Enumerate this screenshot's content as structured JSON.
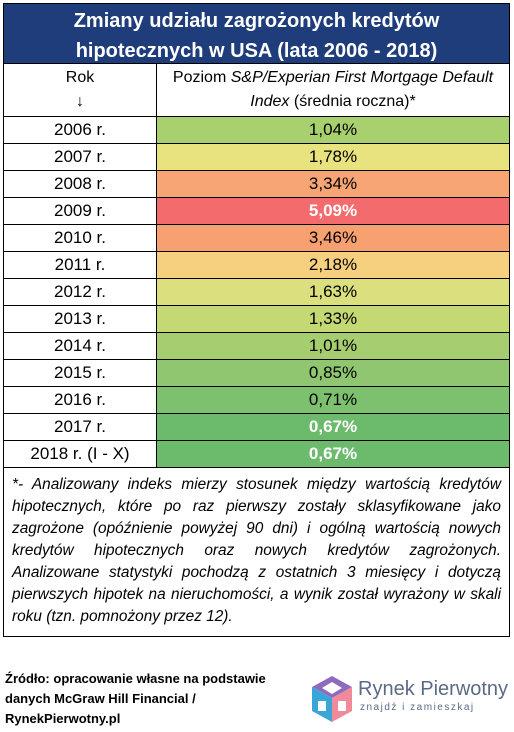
{
  "title": "Zmiany udziału zagrożonych kredytów hipotecznych w USA (lata 2006 - 2018)",
  "header": {
    "year_col": "Rok",
    "year_arrow": "↓",
    "value_col_plain1": "Poziom ",
    "value_col_italic": "S&P/Experian First Mortgage Default Index",
    "value_col_plain2": " (średnia roczna)*"
  },
  "rows": [
    {
      "year": "2006 r.",
      "value": "1,04%",
      "color": "#a9d06f",
      "bold": false
    },
    {
      "year": "2007 r.",
      "value": "1,78%",
      "color": "#e8e27f",
      "bold": false
    },
    {
      "year": "2008 r.",
      "value": "3,34%",
      "color": "#f7a574",
      "bold": false
    },
    {
      "year": "2009 r.",
      "value": "5,09%",
      "color": "#f36b6c",
      "bold": true
    },
    {
      "year": "2010 r.",
      "value": "3,46%",
      "color": "#f7a070",
      "bold": false
    },
    {
      "year": "2011 r.",
      "value": "2,18%",
      "color": "#f6d07f",
      "bold": false
    },
    {
      "year": "2012 r.",
      "value": "1,63%",
      "color": "#dbdf7e",
      "bold": false
    },
    {
      "year": "2013 r.",
      "value": "1,33%",
      "color": "#c4d874",
      "bold": false
    },
    {
      "year": "2014 r.",
      "value": "1,01%",
      "color": "#a6ce70",
      "bold": false
    },
    {
      "year": "2015 r.",
      "value": "0,85%",
      "color": "#8fc66f",
      "bold": false
    },
    {
      "year": "2016 r.",
      "value": "0,71%",
      "color": "#7dc06d",
      "bold": false
    },
    {
      "year": "2017 r.",
      "value": "0,67%",
      "color": "#6cbb6c",
      "bold": true
    },
    {
      "year": "2018 r. (I - X)",
      "value": "0,67%",
      "color": "#6cbb6c",
      "bold": true
    }
  ],
  "note": "*- Analizowany indeks mierzy stosunek między wartością kredytów hipotecznych, które po raz pierwszy zostały sklasyfikowane jako zagrożone (opóźnienie powyżej 90 dni) i ogólną wartością nowych kredytów hipotecznych oraz nowych kredytów zagrożonych. Analizowane statystyki pochodzą z ostatnich 3 miesięcy i dotyczą pierwszych hipotek na nieruchomości, a wynik został wyrażony w skali roku (tzn. pomnożony przez 12).",
  "source": {
    "line1": "Źródło: opracowanie własne na podstawie",
    "line2": "danych McGraw Hill Financial /",
    "line3": "RynekPierwotny.pl"
  },
  "logo": {
    "name": "Rynek Pierwotny",
    "tagline": "znajdź i zamieszkaj"
  }
}
